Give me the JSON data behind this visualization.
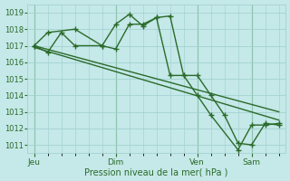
{
  "background_color": "#c5e8e8",
  "grid_color": "#9ecece",
  "line_color": "#2a6b2a",
  "text_color": "#2a6b2a",
  "xlabel": "Pression niveau de la mer( hPa )",
  "ylim": [
    1010.5,
    1019.5
  ],
  "yticks": [
    1011,
    1012,
    1013,
    1014,
    1015,
    1016,
    1017,
    1018,
    1019
  ],
  "xtick_labels": [
    "Jeu",
    "Dim",
    "Ven",
    "Sam"
  ],
  "xtick_positions": [
    0,
    36,
    72,
    96
  ],
  "xmax": 108,
  "series1_x": [
    0,
    6,
    18,
    30,
    36,
    42,
    48,
    54,
    60,
    66,
    72,
    78,
    84,
    90,
    96,
    102,
    108
  ],
  "series1_y": [
    1017.0,
    1017.8,
    1018.0,
    1017.0,
    1018.3,
    1018.9,
    1018.2,
    1018.7,
    1018.8,
    1015.2,
    1015.2,
    1014.0,
    1012.8,
    1011.1,
    1011.0,
    1012.3,
    1012.2
  ],
  "series2_x": [
    0,
    6,
    12,
    18,
    30,
    36,
    42,
    48,
    54,
    60,
    66,
    72,
    78,
    90,
    96,
    102,
    108
  ],
  "series2_y": [
    1017.0,
    1016.6,
    1017.8,
    1017.0,
    1017.0,
    1016.8,
    1018.3,
    1018.3,
    1018.7,
    1015.2,
    1015.2,
    1014.0,
    1012.8,
    1010.7,
    1012.2,
    1012.2,
    1012.3
  ],
  "series3_x": [
    0,
    108
  ],
  "series3_y": [
    1017.0,
    1013.0
  ],
  "series4_x": [
    0,
    108
  ],
  "series4_y": [
    1016.9,
    1012.5
  ],
  "marker_size": 2.5,
  "linewidth": 1.0
}
